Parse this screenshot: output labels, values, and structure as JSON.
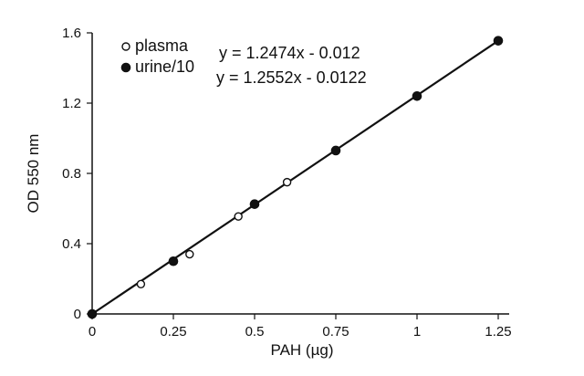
{
  "chart_data": {
    "type": "scatter",
    "title": "",
    "xlabel": "PAH (µg)",
    "ylabel": "OD 550 nm",
    "xlim": [
      0,
      1.25
    ],
    "ylim": [
      0,
      1.6
    ],
    "x_ticks": [
      0,
      0.25,
      0.5,
      0.75,
      1,
      1.25
    ],
    "x_tick_labels": [
      "0",
      "0.25",
      "0.5",
      "0.75",
      "1",
      "1.25"
    ],
    "y_ticks": [
      0,
      0.4,
      0.8,
      1.2,
      1.6
    ],
    "y_tick_labels": [
      "0",
      "0.4",
      "0.8",
      "1.2",
      "1.6"
    ],
    "grid": false,
    "legend_position": "top-left",
    "series": [
      {
        "name": "plasma",
        "marker": "open-circle",
        "color": "#111111",
        "x": [
          0,
          0.15,
          0.3,
          0.45,
          0.6
        ],
        "y": [
          0,
          0.17,
          0.34,
          0.555,
          0.75
        ],
        "equation": "y = 1.2474x - 0.012"
      },
      {
        "name": "urine/10",
        "marker": "filled-circle",
        "color": "#111111",
        "x": [
          0,
          0.25,
          0.5,
          0.75,
          1,
          1.25
        ],
        "y": [
          0,
          0.3,
          0.625,
          0.93,
          1.24,
          1.555
        ],
        "equation": "y = 1.2552x - 0.0122"
      }
    ],
    "trendline": {
      "x": [
        0,
        1.25
      ],
      "y": [
        0,
        1.555
      ]
    }
  }
}
